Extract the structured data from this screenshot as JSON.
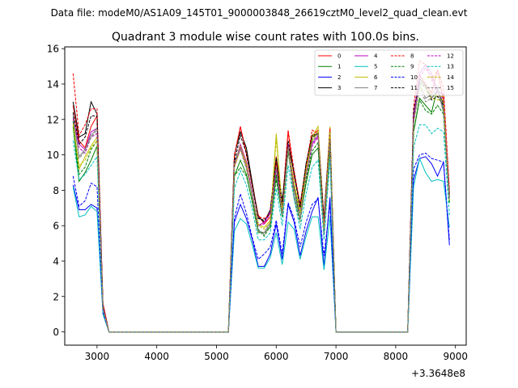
{
  "figure": {
    "suptitle": "Data file: modeM0/AS1A09_145T01_9000003848_26619cztM0_level2_quad_clean.evt"
  },
  "chart_data": {
    "type": "line",
    "title": "Quadrant 3 module wise count rates with 100.0s bins.",
    "xlabel": "",
    "ylabel": "",
    "x_offset_label": "+3.3648e8",
    "xlim": [
      2460,
      9180
    ],
    "ylim": [
      -0.75,
      16.1
    ],
    "xticks": [
      3000,
      4000,
      5000,
      6000,
      7000,
      8000,
      9000
    ],
    "yticks": [
      0,
      2,
      4,
      6,
      8,
      10,
      12,
      14,
      16
    ],
    "legend_position": "top-right",
    "x": [
      2600,
      2700,
      2800,
      2900,
      3000,
      3100,
      3200,
      3300,
      5200,
      5300,
      5400,
      5500,
      5600,
      5700,
      5800,
      5900,
      6000,
      6100,
      6200,
      6300,
      6400,
      6500,
      6600,
      6700,
      6800,
      6900,
      7000,
      8200,
      8300,
      8400,
      8500,
      8600,
      8700,
      8800,
      8900
    ],
    "series": [
      {
        "name": "0",
        "color": "#ff0000",
        "dash": false,
        "values": [
          12.8,
          10.8,
          10.4,
          11.6,
          12.2,
          1.6,
          0,
          0,
          0,
          9.9,
          11.6,
          10.1,
          8.2,
          6.6,
          6.1,
          6.5,
          9.6,
          7.1,
          11.3,
          8.8,
          7.2,
          9.3,
          11.1,
          11.4,
          6.4,
          11.5,
          0,
          0,
          12.2,
          14.5,
          14.0,
          13.5,
          14.8,
          13.0,
          7.8
        ]
      },
      {
        "name": "1",
        "color": "#008000",
        "dash": false,
        "values": [
          11.6,
          8.5,
          9.0,
          9.7,
          10.5,
          1.3,
          0,
          0,
          0,
          8.8,
          9.7,
          8.9,
          7.3,
          5.6,
          5.6,
          5.9,
          8.9,
          6.5,
          10.2,
          8.1,
          6.4,
          8.4,
          10.0,
          10.4,
          5.6,
          10.4,
          0,
          0,
          11.3,
          13.2,
          12.8,
          12.4,
          13.8,
          12.4,
          7.3
        ]
      },
      {
        "name": "2",
        "color": "#0000ff",
        "dash": false,
        "values": [
          8.3,
          6.9,
          6.9,
          7.2,
          7.0,
          1.1,
          0,
          0,
          0,
          6.2,
          7.2,
          6.4,
          5.2,
          3.7,
          3.7,
          4.4,
          6.1,
          4.1,
          7.2,
          6.2,
          4.3,
          5.7,
          6.8,
          7.6,
          3.7,
          7.6,
          0,
          0,
          8.6,
          9.8,
          9.9,
          9.5,
          8.8,
          9.6,
          4.9
        ]
      },
      {
        "name": "3",
        "color": "#000000",
        "dash": false,
        "values": [
          13.0,
          11.0,
          11.2,
          13.0,
          12.3,
          1.5,
          0,
          0,
          0,
          10.0,
          11.3,
          10.4,
          8.4,
          6.5,
          6.2,
          6.9,
          9.9,
          7.4,
          10.6,
          9.0,
          7.1,
          9.5,
          11.1,
          11.2,
          6.3,
          11.4,
          0,
          0,
          12.3,
          14.3,
          13.9,
          13.2,
          13.6,
          12.9,
          7.8
        ]
      },
      {
        "name": "4",
        "color": "#bf00bf",
        "dash": false,
        "values": [
          12.0,
          10.6,
          10.3,
          11.3,
          11.5,
          1.4,
          0,
          0,
          0,
          9.4,
          10.6,
          9.6,
          7.8,
          6.0,
          6.2,
          6.8,
          9.3,
          6.8,
          10.6,
          8.3,
          6.8,
          8.9,
          10.6,
          11.1,
          6.0,
          11.0,
          0,
          0,
          12.2,
          14.6,
          15.1,
          14.6,
          13.6,
          13.4,
          7.6
        ]
      },
      {
        "name": "5",
        "color": "#00bfbf",
        "dash": false,
        "values": [
          8.2,
          6.5,
          6.6,
          7.1,
          6.8,
          1.0,
          0,
          0,
          0,
          5.7,
          6.4,
          6.1,
          4.9,
          3.6,
          3.6,
          4.2,
          5.6,
          3.8,
          6.2,
          5.8,
          4.1,
          5.4,
          6.5,
          6.5,
          3.5,
          6.5,
          0,
          0,
          8.2,
          9.8,
          9.0,
          8.5,
          8.6,
          8.5,
          5.9
        ]
      },
      {
        "name": "6",
        "color": "#bfbf00",
        "dash": false,
        "values": [
          11.9,
          9.2,
          9.9,
          10.5,
          11.0,
          1.3,
          0,
          0,
          0,
          9.5,
          10.5,
          9.5,
          7.7,
          6.1,
          5.9,
          6.3,
          11.2,
          6.9,
          10.5,
          8.4,
          6.8,
          9.2,
          11.0,
          11.6,
          5.9,
          11.6,
          0,
          0,
          11.9,
          14.1,
          13.8,
          13.4,
          13.3,
          13.3,
          7.5
        ]
      },
      {
        "name": "7",
        "color": "#808080",
        "dash": false,
        "values": [
          12.3,
          9.9,
          10.3,
          11.1,
          11.5,
          1.3,
          0,
          0,
          0,
          9.6,
          10.4,
          9.3,
          7.8,
          5.7,
          5.6,
          6.2,
          9.3,
          6.7,
          10.5,
          7.7,
          6.4,
          9.0,
          10.8,
          11.3,
          5.6,
          11.0,
          0,
          0,
          11.9,
          14.0,
          13.2,
          13.4,
          13.9,
          12.5,
          7.6
        ]
      },
      {
        "name": "8",
        "color": "#ff0000",
        "dash": true,
        "values": [
          14.6,
          11.1,
          11.7,
          12.6,
          12.6,
          1.6,
          0,
          0,
          0,
          10.0,
          11.6,
          10.0,
          8.3,
          6.5,
          6.4,
          6.7,
          9.9,
          7.2,
          11.4,
          9.1,
          7.2,
          9.4,
          11.4,
          11.2,
          6.2,
          11.5,
          0,
          0,
          12.7,
          15.3,
          15.1,
          14.2,
          14.8,
          13.8,
          8.0
        ]
      },
      {
        "name": "9",
        "color": "#008000",
        "dash": true,
        "values": [
          11.9,
          8.9,
          9.3,
          10.3,
          10.8,
          1.3,
          0,
          0,
          0,
          8.8,
          9.3,
          8.8,
          7.4,
          5.8,
          5.4,
          6.0,
          8.6,
          6.5,
          10.3,
          7.5,
          6.2,
          8.6,
          10.2,
          10.7,
          5.7,
          10.7,
          0,
          0,
          11.3,
          13.1,
          12.5,
          12.3,
          12.8,
          12.3,
          7.3
        ]
      },
      {
        "name": "10",
        "color": "#0000ff",
        "dash": true,
        "values": [
          8.8,
          7.1,
          7.4,
          8.4,
          8.2,
          1.1,
          0,
          0,
          0,
          6.4,
          7.8,
          6.7,
          5.3,
          4.1,
          4.4,
          4.8,
          6.3,
          4.4,
          7.3,
          6.4,
          4.8,
          6.2,
          7.2,
          7.5,
          4.3,
          7.2,
          0,
          0,
          9.2,
          10.0,
          10.1,
          9.8,
          9.7,
          9.6,
          5.2
        ]
      },
      {
        "name": "11",
        "color": "#000000",
        "dash": true,
        "values": [
          12.4,
          10.6,
          11.0,
          12.2,
          12.2,
          1.5,
          0,
          0,
          0,
          9.6,
          11.1,
          10.1,
          8.2,
          6.4,
          6.3,
          6.7,
          9.8,
          7.2,
          10.8,
          8.9,
          7.0,
          9.5,
          11.0,
          11.2,
          6.3,
          11.3,
          0,
          0,
          12.5,
          14.1,
          13.8,
          13.1,
          13.3,
          12.8,
          7.7
        ]
      },
      {
        "name": "12",
        "color": "#bf00bf",
        "dash": true,
        "values": [
          12.1,
          10.4,
          10.1,
          11.0,
          11.2,
          1.4,
          0,
          0,
          0,
          9.3,
          10.4,
          9.4,
          7.7,
          6.0,
          6.1,
          6.7,
          9.2,
          6.8,
          10.5,
          8.2,
          6.7,
          8.8,
          10.5,
          11.0,
          6.0,
          10.9,
          0,
          0,
          12.1,
          14.4,
          14.9,
          14.4,
          13.4,
          13.2,
          7.5
        ]
      },
      {
        "name": "13",
        "color": "#00bfbf",
        "dash": true,
        "values": [
          10.8,
          8.6,
          8.9,
          9.4,
          9.9,
          1.2,
          0,
          0,
          0,
          8.1,
          9.1,
          8.3,
          6.9,
          5.2,
          5.2,
          5.6,
          8.1,
          6.0,
          9.4,
          7.5,
          5.8,
          7.8,
          9.3,
          9.7,
          5.2,
          9.7,
          0,
          0,
          10.4,
          11.7,
          11.7,
          11.2,
          11.5,
          11.3,
          6.6
        ]
      },
      {
        "name": "14",
        "color": "#bfbf00",
        "dash": true,
        "values": [
          11.7,
          9.4,
          9.7,
          10.4,
          10.8,
          1.3,
          0,
          0,
          0,
          9.3,
          10.3,
          9.4,
          7.6,
          6.0,
          5.8,
          6.2,
          10.9,
          6.8,
          10.4,
          8.3,
          6.7,
          9.0,
          10.8,
          11.3,
          5.8,
          11.3,
          0,
          0,
          11.8,
          13.8,
          13.6,
          13.2,
          13.1,
          13.1,
          7.4
        ]
      },
      {
        "name": "15",
        "color": "#808080",
        "dash": true,
        "values": [
          12.2,
          9.8,
          10.2,
          11.0,
          11.4,
          1.3,
          0,
          0,
          0,
          9.5,
          10.3,
          9.2,
          7.7,
          5.7,
          5.5,
          6.1,
          9.2,
          6.6,
          10.4,
          7.6,
          6.3,
          8.9,
          10.7,
          11.2,
          5.5,
          10.9,
          0,
          0,
          11.8,
          13.8,
          13.0,
          13.2,
          13.7,
          12.4,
          7.5
        ]
      }
    ]
  }
}
